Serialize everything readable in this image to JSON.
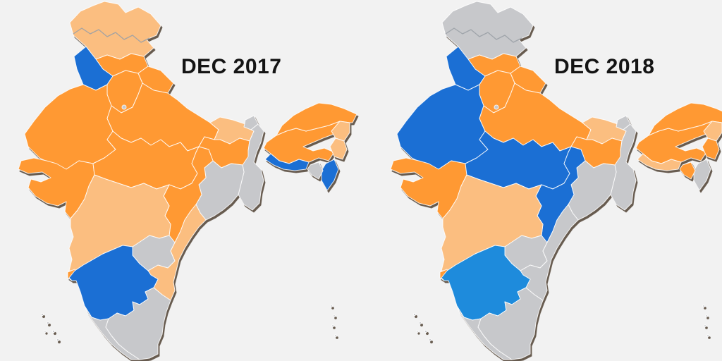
{
  "page": {
    "background_color": "#F2F2F2",
    "label_color": "#141414"
  },
  "colors": {
    "bjp": "#FF9933",
    "nda_ally": "#FBBE80",
    "congress": "#1B6FD4",
    "congress_ally": "#1E8BDC",
    "other": "#C7C8CB"
  },
  "maps": [
    {
      "id": "dec-2017",
      "label": "DEC 2017",
      "states": {
        "jammu_kashmir": "nda_ally",
        "himachal_pradesh": "bjp",
        "punjab": "congress",
        "uttarakhand": "bjp",
        "haryana": "bjp",
        "delhi": "other",
        "rajasthan": "bjp",
        "gujarat": "bjp",
        "uttar_pradesh": "bjp",
        "madhya_pradesh": "bjp",
        "bihar": "nda_ally",
        "jharkhand": "bjp",
        "sikkim": "other",
        "west_bengal": "other",
        "odisha": "other",
        "chhattisgarh": "bjp",
        "maharashtra": "nda_ally",
        "goa": "bjp",
        "telangana": "other",
        "andhra_pradesh": "nda_ally",
        "karnataka": "congress",
        "kerala": "other",
        "tamil_nadu": "other",
        "assam": "bjp",
        "arunachal_pradesh": "bjp",
        "nagaland": "nda_ally",
        "manipur": "nda_ally",
        "mizoram": "congress",
        "tripura": "other",
        "meghalaya": "congress",
        "lakshadweep": "other",
        "andaman_nicobar": "other"
      }
    },
    {
      "id": "dec-2018",
      "label": "DEC 2018",
      "states": {
        "jammu_kashmir": "other",
        "himachal_pradesh": "bjp",
        "punjab": "congress",
        "uttarakhand": "bjp",
        "haryana": "bjp",
        "delhi": "other",
        "rajasthan": "congress",
        "gujarat": "bjp",
        "uttar_pradesh": "bjp",
        "madhya_pradesh": "congress",
        "bihar": "nda_ally",
        "jharkhand": "bjp",
        "sikkim": "other",
        "west_bengal": "other",
        "odisha": "other",
        "chhattisgarh": "congress",
        "maharashtra": "nda_ally",
        "goa": "bjp",
        "telangana": "other",
        "andhra_pradesh": "other",
        "karnataka": "congress_ally",
        "kerala": "other",
        "tamil_nadu": "other",
        "assam": "bjp",
        "arunachal_pradesh": "bjp",
        "nagaland": "nda_ally",
        "manipur": "bjp",
        "mizoram": "other",
        "tripura": "bjp",
        "meghalaya": "nda_ally",
        "lakshadweep": "other",
        "andaman_nicobar": "other"
      }
    }
  ]
}
